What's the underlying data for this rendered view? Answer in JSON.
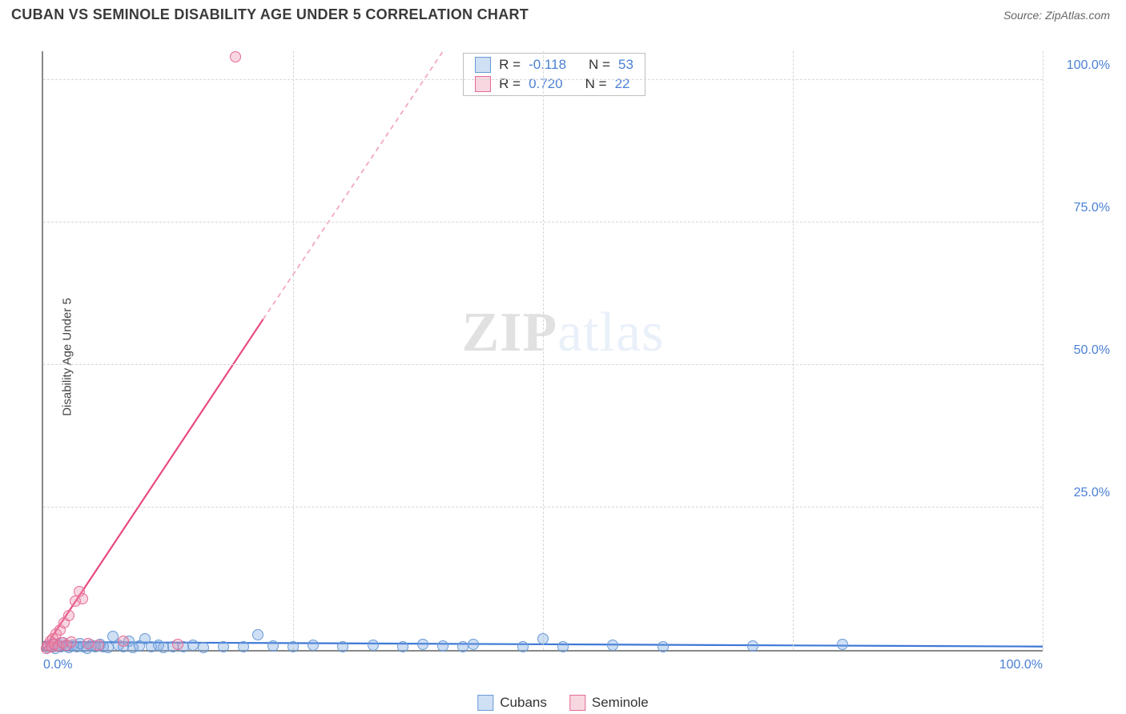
{
  "header": {
    "title": "CUBAN VS SEMINOLE DISABILITY AGE UNDER 5 CORRELATION CHART",
    "source_label": "Source:",
    "source_value": "ZipAtlas.com"
  },
  "chart": {
    "type": "scatter",
    "ylabel": "Disability Age Under 5",
    "xlim": [
      0,
      100
    ],
    "ylim": [
      0,
      105
    ],
    "x_ticks": [
      {
        "pos": 0,
        "label": "0.0%"
      },
      {
        "pos": 100,
        "label": "100.0%"
      }
    ],
    "y_ticks": [
      {
        "pos": 25,
        "label": "25.0%"
      },
      {
        "pos": 50,
        "label": "50.0%"
      },
      {
        "pos": 75,
        "label": "75.0%"
      },
      {
        "pos": 100,
        "label": "100.0%"
      }
    ],
    "grid_h": [
      25,
      50,
      75,
      100
    ],
    "grid_v": [
      25,
      50,
      75,
      100
    ],
    "grid_color": "#d7d7d7",
    "background_color": "#ffffff",
    "axis_color": "#888888",
    "tick_label_color": "#4a7fd6",
    "watermark": {
      "z": "ZIP",
      "rest": "atlas"
    },
    "series": [
      {
        "name": "Cubans",
        "color_fill": "rgba(117,162,224,0.35)",
        "color_stroke": "#6a9ad8",
        "marker_radius": 7,
        "trend": {
          "x1": 0,
          "y1": 1.4,
          "x2": 100,
          "y2": 0.6,
          "color": "#3e78d6",
          "width": 2.2,
          "dash": "none"
        },
        "points": [
          [
            0.5,
            0.4
          ],
          [
            0.8,
            0.6
          ],
          [
            1.0,
            1.0
          ],
          [
            1.2,
            0.3
          ],
          [
            1.5,
            0.8
          ],
          [
            1.8,
            0.5
          ],
          [
            2.0,
            1.2
          ],
          [
            2.3,
            0.7
          ],
          [
            2.6,
            0.4
          ],
          [
            3.0,
            0.9
          ],
          [
            3.4,
            0.5
          ],
          [
            3.7,
            1.1
          ],
          [
            4.0,
            0.6
          ],
          [
            4.4,
            0.3
          ],
          [
            4.8,
            0.8
          ],
          [
            5.2,
            0.5
          ],
          [
            5.7,
            1.0
          ],
          [
            6.0,
            0.6
          ],
          [
            6.5,
            0.4
          ],
          [
            7.0,
            2.4
          ],
          [
            7.5,
            0.8
          ],
          [
            8.0,
            0.5
          ],
          [
            8.6,
            1.6
          ],
          [
            9.0,
            0.4
          ],
          [
            9.6,
            0.7
          ],
          [
            10.2,
            2.0
          ],
          [
            10.8,
            0.5
          ],
          [
            11.5,
            0.8
          ],
          [
            12.0,
            0.4
          ],
          [
            13.0,
            0.6
          ],
          [
            14.0,
            0.5
          ],
          [
            15.0,
            0.8
          ],
          [
            16.0,
            0.4
          ],
          [
            18.0,
            0.6
          ],
          [
            20.0,
            0.5
          ],
          [
            21.5,
            2.6
          ],
          [
            23.0,
            0.7
          ],
          [
            25.0,
            0.5
          ],
          [
            27.0,
            0.8
          ],
          [
            30.0,
            0.5
          ],
          [
            33.0,
            0.9
          ],
          [
            36.0,
            0.6
          ],
          [
            38.0,
            1.0
          ],
          [
            40.0,
            0.7
          ],
          [
            42.0,
            0.5
          ],
          [
            43.0,
            1.0
          ],
          [
            48.0,
            0.6
          ],
          [
            50.0,
            2.0
          ],
          [
            52.0,
            0.5
          ],
          [
            57.0,
            0.8
          ],
          [
            62.0,
            0.6
          ],
          [
            71.0,
            0.7
          ],
          [
            80.0,
            1.0
          ]
        ]
      },
      {
        "name": "Seminole",
        "color_fill": "rgba(236,140,170,0.35)",
        "color_stroke": "#e66a96",
        "marker_radius": 7,
        "trend": {
          "solid": {
            "x1": 0,
            "y1": 0,
            "x2": 22,
            "y2": 58,
            "color": "#e84a82",
            "width": 2.2
          },
          "dashed": {
            "x1": 22,
            "y1": 58,
            "x2": 40,
            "y2": 105,
            "color": "#f3a8c1",
            "width": 1.8,
            "dash": "6,5"
          }
        },
        "points": [
          [
            0.3,
            0.3
          ],
          [
            0.5,
            0.8
          ],
          [
            0.7,
            1.5
          ],
          [
            0.9,
            0.5
          ],
          [
            1.0,
            2.0
          ],
          [
            1.1,
            1.0
          ],
          [
            1.3,
            2.8
          ],
          [
            1.5,
            0.7
          ],
          [
            1.7,
            3.5
          ],
          [
            1.9,
            1.2
          ],
          [
            2.1,
            4.8
          ],
          [
            2.3,
            0.9
          ],
          [
            2.6,
            6.0
          ],
          [
            2.8,
            1.4
          ],
          [
            3.2,
            8.5
          ],
          [
            3.6,
            10.2
          ],
          [
            3.9,
            9.0
          ],
          [
            4.5,
            1.1
          ],
          [
            5.5,
            0.8
          ],
          [
            8.0,
            1.5
          ],
          [
            13.5,
            1.0
          ],
          [
            19.2,
            104
          ]
        ]
      }
    ],
    "stats_box": {
      "rows": [
        {
          "swatch_fill": "rgba(117,162,224,0.35)",
          "swatch_stroke": "#6a9ad8",
          "r": "-0.118",
          "n": "53"
        },
        {
          "swatch_fill": "rgba(236,140,170,0.35)",
          "swatch_stroke": "#e66a96",
          "r": "0.720",
          "n": "22"
        }
      ],
      "r_label": "R =",
      "n_label": "N ="
    },
    "legend_bottom": [
      {
        "label": "Cubans",
        "fill": "rgba(117,162,224,0.35)",
        "stroke": "#6a9ad8"
      },
      {
        "label": "Seminole",
        "fill": "rgba(236,140,170,0.35)",
        "stroke": "#e66a96"
      }
    ]
  }
}
